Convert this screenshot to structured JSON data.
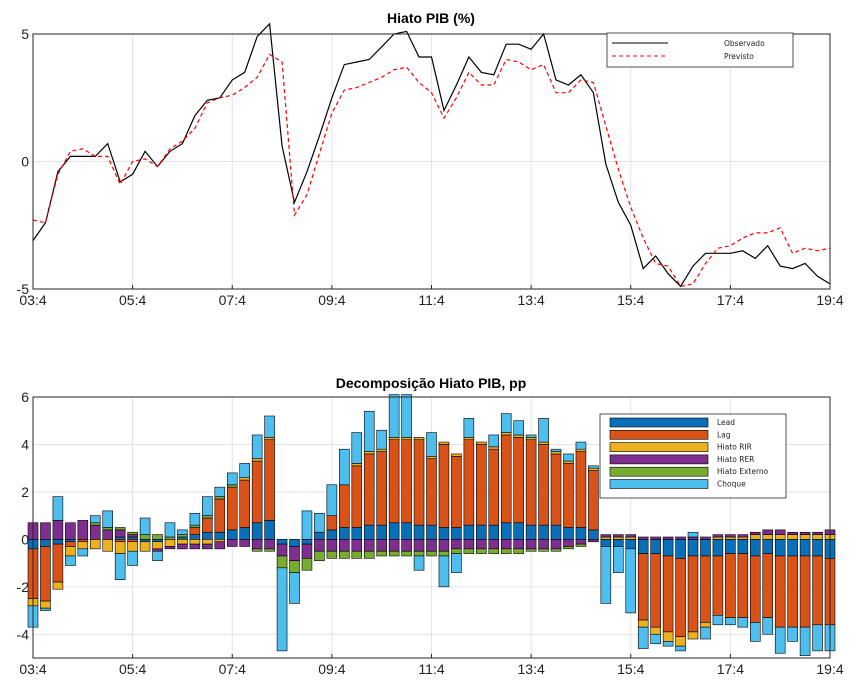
{
  "chart_data": [
    {
      "type": "line",
      "title": "Hiato PIB (%)",
      "x_tick_labels": [
        "03:4",
        "05:4",
        "07:4",
        "09:4",
        "11:4",
        "13:4",
        "15:4",
        "17:4",
        "19:4"
      ],
      "y_tick_labels": [
        "-5",
        "0",
        "5"
      ],
      "ylim": [
        -5,
        5
      ],
      "grid": true,
      "legend_position": "top-right",
      "x_period_index": [
        0,
        1,
        2,
        3,
        4,
        5,
        6,
        7,
        8,
        9,
        10,
        11,
        12,
        13,
        14,
        15,
        16,
        17,
        18,
        19,
        20,
        21,
        22,
        23,
        24,
        25,
        26,
        27,
        28,
        29,
        30,
        31,
        32,
        33,
        34,
        35,
        36,
        37,
        38,
        39,
        40,
        41,
        42,
        43,
        44,
        45,
        46,
        47,
        48,
        49,
        50,
        51,
        52,
        53,
        54,
        55,
        56,
        57,
        58,
        59,
        60,
        61,
        62,
        63,
        64
      ],
      "series": [
        {
          "name": "Observado",
          "color": "#000000",
          "style": "solid",
          "values": [
            -3.1,
            -2.4,
            -0.4,
            0.2,
            0.2,
            0.2,
            0.7,
            -0.8,
            -0.5,
            0.4,
            -0.2,
            0.4,
            0.7,
            1.8,
            2.4,
            2.5,
            3.2,
            3.5,
            4.9,
            5.4,
            0.6,
            -1.6,
            -0.4,
            1.0,
            2.5,
            3.8,
            3.9,
            4.0,
            4.5,
            5.0,
            5.1,
            4.1,
            4.1,
            2.0,
            3.0,
            4.1,
            3.5,
            3.4,
            4.6,
            4.6,
            4.4,
            5.0,
            3.2,
            3.0,
            3.4,
            2.7,
            -0.1,
            -1.6,
            -2.5,
            -4.2,
            -3.7,
            -4.4,
            -4.9,
            -4.1,
            -3.6,
            -3.6,
            -3.6,
            -3.5,
            -3.8,
            -3.3,
            -4.1,
            -4.2,
            -4.0,
            -4.5,
            -4.8
          ]
        },
        {
          "name": "Previsto",
          "color": "#ff0000",
          "style": "dashed",
          "values": [
            -2.3,
            -2.4,
            -0.5,
            0.4,
            0.5,
            0.2,
            0.2,
            -0.9,
            0.0,
            0.1,
            -0.2,
            0.5,
            0.8,
            1.3,
            2.3,
            2.5,
            2.6,
            2.9,
            3.3,
            4.2,
            3.9,
            -2.1,
            -1.3,
            0.3,
            1.9,
            2.8,
            2.9,
            3.1,
            3.3,
            3.6,
            3.7,
            3.1,
            2.7,
            1.7,
            2.5,
            3.5,
            3.0,
            3.0,
            4.0,
            3.9,
            3.6,
            3.8,
            2.7,
            2.7,
            3.2,
            3.1,
            1.4,
            -0.3,
            -1.8,
            -3.0,
            -4.0,
            -4.1,
            -4.9,
            -4.8,
            -4.0,
            -3.4,
            -3.3,
            -3.0,
            -2.8,
            -2.8,
            -2.6,
            -3.6,
            -3.4,
            -3.5,
            -3.4
          ]
        }
      ]
    },
    {
      "type": "bar",
      "stacked": true,
      "title": "Decomposição Hiato PIB, pp",
      "x_tick_labels": [
        "03:4",
        "05:4",
        "07:4",
        "09:4",
        "11:4",
        "13:4",
        "15:4",
        "17:4",
        "19:4"
      ],
      "y_tick_labels": [
        "-4",
        "-2",
        "0",
        "2",
        "4",
        "6"
      ],
      "ylim": [
        -5,
        6
      ],
      "grid": true,
      "legend_position": "top-right",
      "x_period_index": [
        0,
        1,
        2,
        3,
        4,
        5,
        6,
        7,
        8,
        9,
        10,
        11,
        12,
        13,
        14,
        15,
        16,
        17,
        18,
        19,
        20,
        21,
        22,
        23,
        24,
        25,
        26,
        27,
        28,
        29,
        30,
        31,
        32,
        33,
        34,
        35,
        36,
        37,
        38,
        39,
        40,
        41,
        42,
        43,
        44,
        45,
        46,
        47,
        48,
        49,
        50,
        51,
        52,
        53,
        54,
        55,
        56,
        57,
        58,
        59,
        60,
        61,
        62,
        63,
        64
      ],
      "series": [
        {
          "name": "Lead",
          "color": "#0b6fb8",
          "values": [
            -0.4,
            -0.3,
            -0.2,
            -0.1,
            0.0,
            0.0,
            0.0,
            0.1,
            0.1,
            -0.1,
            -0.1,
            0.0,
            0.1,
            0.2,
            0.3,
            0.3,
            0.4,
            0.5,
            0.7,
            0.8,
            -0.2,
            -0.3,
            -0.2,
            0.3,
            0.4,
            0.5,
            0.5,
            0.6,
            0.6,
            0.7,
            0.7,
            0.6,
            0.6,
            0.5,
            0.5,
            0.6,
            0.6,
            0.6,
            0.7,
            0.7,
            0.6,
            0.6,
            0.6,
            0.5,
            0.5,
            0.4,
            -0.3,
            -0.3,
            -0.4,
            -0.6,
            -0.6,
            -0.7,
            -0.8,
            -0.7,
            -0.7,
            -0.7,
            -0.6,
            -0.6,
            -0.7,
            -0.6,
            -0.7,
            -0.7,
            -0.7,
            -0.7,
            -0.8
          ]
        },
        {
          "name": "Lag",
          "color": "#d95319",
          "values": [
            -2.1,
            -2.3,
            -1.6,
            -0.2,
            -0.1,
            0.0,
            0.0,
            -0.1,
            -0.1,
            0.0,
            0.0,
            0.0,
            0.0,
            0.3,
            0.6,
            1.4,
            1.8,
            2.0,
            2.6,
            3.4,
            0.0,
            0.0,
            0.0,
            0.0,
            0.6,
            1.8,
            2.6,
            3.0,
            3.1,
            3.5,
            3.5,
            3.6,
            2.8,
            3.5,
            3.0,
            3.6,
            3.4,
            3.2,
            3.7,
            3.6,
            3.6,
            3.4,
            3.0,
            2.7,
            3.2,
            2.5,
            0.0,
            0.0,
            0.0,
            -2.8,
            -3.1,
            -3.2,
            -3.3,
            -3.2,
            -2.8,
            -2.5,
            -2.7,
            -2.7,
            -2.8,
            -2.7,
            -3.0,
            -3.0,
            -3.0,
            -2.9,
            -2.8
          ]
        },
        {
          "name": "Hiato RIR",
          "color": "#edb120",
          "values": [
            -0.3,
            -0.3,
            -0.3,
            -0.4,
            -0.3,
            -0.4,
            -0.5,
            -0.5,
            -0.4,
            -0.4,
            -0.3,
            -0.3,
            -0.2,
            -0.2,
            -0.2,
            -0.1,
            0.0,
            0.1,
            0.1,
            0.1,
            0.0,
            0.0,
            0.0,
            0.0,
            0.0,
            0.0,
            0.1,
            0.1,
            0.1,
            0.1,
            0.1,
            0.1,
            0.1,
            0.1,
            0.1,
            0.1,
            0.1,
            0.1,
            0.1,
            0.1,
            0.1,
            0.1,
            0.1,
            0.1,
            0.1,
            0.1,
            0.1,
            0.1,
            0.1,
            -0.3,
            -0.3,
            -0.4,
            -0.4,
            -0.3,
            -0.2,
            0.1,
            0.1,
            0.1,
            0.2,
            0.2,
            0.2,
            0.2,
            0.2,
            0.2,
            0.2
          ]
        },
        {
          "name": "Hiato RER",
          "color": "#7e2f8e",
          "values": [
            0.7,
            0.7,
            0.8,
            0.7,
            0.8,
            0.6,
            0.4,
            0.3,
            0.1,
            0.0,
            -0.1,
            -0.1,
            -0.2,
            -0.2,
            -0.2,
            -0.3,
            -0.3,
            -0.3,
            -0.4,
            -0.4,
            -0.5,
            -0.6,
            -0.6,
            -0.5,
            -0.5,
            -0.5,
            -0.5,
            -0.5,
            -0.5,
            -0.5,
            -0.5,
            -0.5,
            -0.5,
            -0.5,
            -0.4,
            -0.4,
            -0.4,
            -0.4,
            -0.4,
            -0.4,
            -0.4,
            -0.4,
            -0.4,
            -0.3,
            -0.2,
            -0.1,
            0.1,
            0.1,
            0.1,
            0.1,
            0.1,
            0.1,
            0.1,
            0.1,
            0.1,
            0.1,
            0.1,
            0.1,
            0.1,
            0.2,
            0.2,
            0.1,
            0.1,
            0.1,
            0.2
          ]
        },
        {
          "name": "Hiato Externo",
          "color": "#77ac30",
          "values": [
            0.0,
            0.0,
            0.0,
            0.0,
            0.0,
            0.1,
            0.1,
            0.1,
            0.1,
            0.2,
            0.2,
            0.1,
            0.1,
            0.1,
            0.1,
            0.1,
            0.1,
            0.0,
            -0.1,
            -0.1,
            -0.5,
            -0.5,
            -0.5,
            -0.4,
            -0.3,
            -0.3,
            -0.3,
            -0.3,
            -0.2,
            -0.2,
            -0.2,
            -0.2,
            -0.2,
            -0.2,
            -0.2,
            -0.2,
            -0.2,
            -0.2,
            -0.2,
            -0.2,
            -0.1,
            -0.1,
            -0.1,
            -0.1,
            -0.1,
            0.0,
            0.0,
            0.0,
            0.0,
            0.0,
            0.0,
            0.0,
            0.0,
            0.0,
            0.0,
            0.0,
            0.0,
            0.0,
            0.0,
            0.0,
            0.0,
            0.0,
            0.0,
            0.0,
            0.0
          ]
        },
        {
          "name": "Choque",
          "color": "#4dbeee",
          "values": [
            -0.9,
            -0.1,
            1.0,
            -0.4,
            -0.3,
            0.3,
            0.7,
            -1.1,
            -0.6,
            0.7,
            -0.4,
            0.6,
            0.2,
            0.5,
            0.8,
            0.4,
            0.5,
            0.6,
            1.0,
            0.9,
            -3.5,
            -1.3,
            1.2,
            0.8,
            1.3,
            1.5,
            1.3,
            1.7,
            0.8,
            1.8,
            1.8,
            -0.6,
            1.0,
            -1.3,
            -0.8,
            0.8,
            0.0,
            0.5,
            0.8,
            0.6,
            0.1,
            1.0,
            0.1,
            0.3,
            0.3,
            0.1,
            -2.4,
            -1.1,
            -2.7,
            -0.9,
            -0.4,
            -0.2,
            -0.2,
            0.2,
            -0.5,
            -0.4,
            -0.3,
            -0.4,
            -0.8,
            -0.7,
            -1.1,
            -0.6,
            -1.2,
            -1.1,
            -1.1
          ]
        }
      ]
    }
  ]
}
